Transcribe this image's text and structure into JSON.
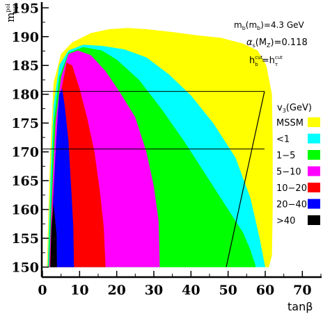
{
  "chart_data": {
    "type": "area",
    "title": "",
    "xlabel": "tanβ",
    "ylabel": "m_top^pol",
    "xlim": [
      0,
      75
    ],
    "ylim": [
      148.5,
      196
    ],
    "x_ticks": [
      "0",
      "10",
      "20",
      "30",
      "40",
      "50",
      "60",
      "70"
    ],
    "y_ticks": [
      "150",
      "155",
      "160",
      "165",
      "170",
      "175",
      "180",
      "185",
      "190",
      "195"
    ],
    "annotations": [
      {
        "id": "mb",
        "text": "m_b(m_b)=4.3 GeV"
      },
      {
        "id": "alphas",
        "text": "α_s(M_Z)=0.118"
      },
      {
        "id": "hcut",
        "text": "h_b^cut=h_τ^cut"
      }
    ],
    "legend": {
      "title": "v_3(GeV)",
      "placement": "right",
      "items": [
        {
          "label": "MSSM",
          "color": "#ffff00"
        },
        {
          "label": "<1",
          "color": "#00ffff"
        },
        {
          "label": "1−5",
          "color": "#00ff00"
        },
        {
          "label": "5−10",
          "color": "#ff00ff"
        },
        {
          "label": "10−20",
          "color": "#ff0000"
        },
        {
          "label": "20−40",
          "color": "#0000ff"
        },
        {
          "label": ">40",
          "color": "#000000"
        }
      ]
    },
    "hlines": [
      180.5,
      170.5
    ],
    "diagonal_line": {
      "x": [
        49.5,
        59.8
      ],
      "y": [
        150,
        180.5
      ]
    },
    "regions": [
      {
        "name": "MSSM",
        "color": "#ffff00",
        "points": [
          [
            1.2,
            150
          ],
          [
            2,
            168
          ],
          [
            3,
            182
          ],
          [
            5,
            187
          ],
          [
            8,
            189
          ],
          [
            13,
            190.6
          ],
          [
            18,
            191.3
          ],
          [
            23,
            191.5
          ],
          [
            28,
            191.3
          ],
          [
            35,
            190.8
          ],
          [
            42,
            190.2
          ],
          [
            48,
            189.8
          ],
          [
            54,
            188.8
          ],
          [
            58,
            187.6
          ],
          [
            60.3,
            185
          ],
          [
            61.8,
            180
          ],
          [
            62,
            172
          ],
          [
            62,
            160
          ],
          [
            61.8,
            152
          ],
          [
            61,
            150
          ]
        ]
      },
      {
        "name": "<1",
        "color": "#00ffff",
        "points": [
          [
            1.4,
            150
          ],
          [
            2.2,
            166
          ],
          [
            3,
            178
          ],
          [
            4.5,
            185
          ],
          [
            7,
            187.6
          ],
          [
            11,
            188.6
          ],
          [
            16,
            188.4
          ],
          [
            22,
            187.8
          ],
          [
            28,
            186.4
          ],
          [
            34,
            183.5
          ],
          [
            40,
            179.8
          ],
          [
            46,
            175
          ],
          [
            52,
            169
          ],
          [
            56,
            162
          ],
          [
            58.5,
            155
          ],
          [
            60,
            150
          ]
        ]
      },
      {
        "name": "1-5",
        "color": "#00ff00",
        "points": [
          [
            1.6,
            150
          ],
          [
            2.4,
            164
          ],
          [
            3,
            175
          ],
          [
            4.5,
            183
          ],
          [
            7,
            187.2
          ],
          [
            11,
            188.2
          ],
          [
            16,
            187.6
          ],
          [
            20,
            186
          ],
          [
            26,
            182.5
          ],
          [
            32,
            177.5
          ],
          [
            38,
            172
          ],
          [
            44,
            166
          ],
          [
            50,
            160
          ],
          [
            54,
            156
          ],
          [
            56,
            153
          ],
          [
            57.5,
            150
          ]
        ]
      },
      {
        "name": "5-10",
        "color": "#ff00ff",
        "points": [
          [
            1.8,
            150
          ],
          [
            2.6,
            163
          ],
          [
            3.5,
            175
          ],
          [
            5,
            183
          ],
          [
            7,
            187
          ],
          [
            9.5,
            187.6
          ],
          [
            13,
            186.8
          ],
          [
            17,
            184
          ],
          [
            21,
            180.2
          ],
          [
            25,
            176
          ],
          [
            28,
            170
          ],
          [
            30,
            164
          ],
          [
            31.3,
            158
          ],
          [
            31.6,
            150
          ]
        ]
      },
      {
        "name": "10-20",
        "color": "#ff0000",
        "points": [
          [
            2,
            150
          ],
          [
            2.8,
            162
          ],
          [
            3.8,
            172
          ],
          [
            5,
            180.5
          ],
          [
            6.5,
            185.5
          ],
          [
            8,
            185
          ],
          [
            10,
            181
          ],
          [
            12,
            176
          ],
          [
            14,
            170
          ],
          [
            15.5,
            163
          ],
          [
            16.5,
            157
          ],
          [
            17,
            150
          ]
        ]
      },
      {
        "name": "20-40",
        "color": "#0000ff",
        "points": [
          [
            2.1,
            150
          ],
          [
            2.9,
            162
          ],
          [
            3.7,
            172
          ],
          [
            4.5,
            180
          ],
          [
            5.3,
            181
          ],
          [
            6,
            178
          ],
          [
            7,
            172
          ],
          [
            7.8,
            163
          ],
          [
            8.3,
            157
          ],
          [
            8.5,
            150
          ]
        ]
      },
      {
        "name": ">40",
        "color": "#000000",
        "points": [
          [
            2.1,
            150
          ],
          [
            2.4,
            157
          ],
          [
            3,
            161
          ],
          [
            3.8,
            155.5
          ],
          [
            3.9,
            150
          ]
        ]
      }
    ]
  }
}
